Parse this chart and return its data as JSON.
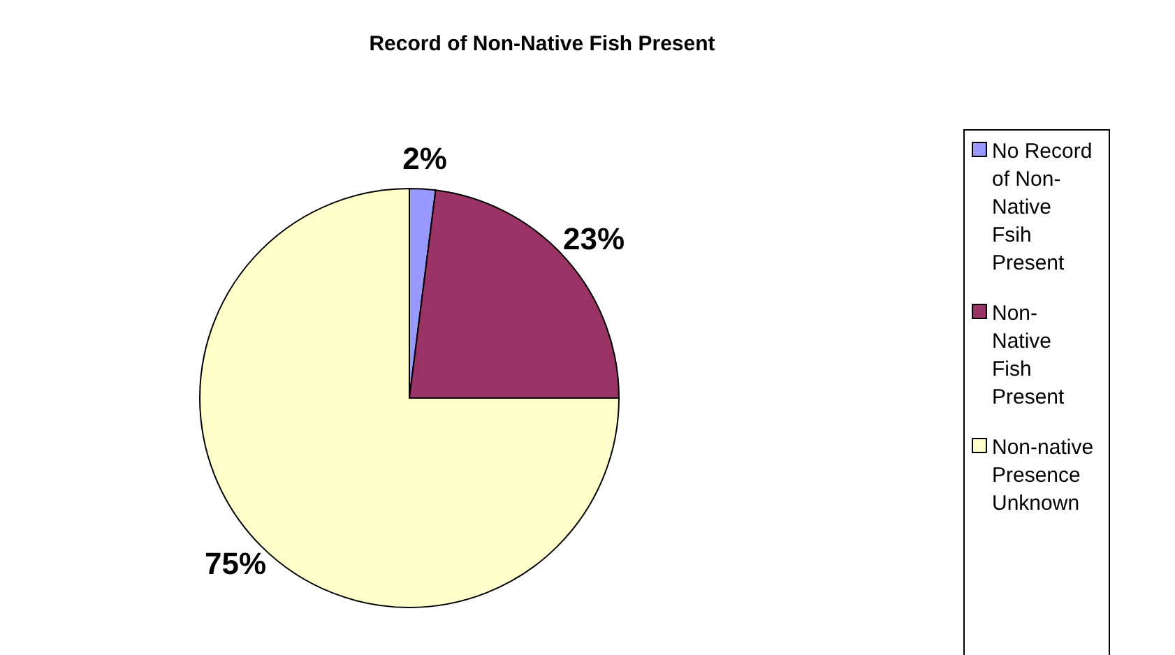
{
  "chart_data": {
    "type": "pie",
    "title": "Record of Non-Native Fish Present",
    "categories": [
      "No Record of Non-Native Fsih Present",
      "Non-Native Fish Present",
      "Non-native Presence Unknown"
    ],
    "values": [
      2,
      23,
      75
    ],
    "colors": [
      "#9999ff",
      "#993366",
      "#ffffcc"
    ],
    "value_labels": [
      "2%",
      "23%",
      "75%"
    ],
    "legend": "right"
  }
}
